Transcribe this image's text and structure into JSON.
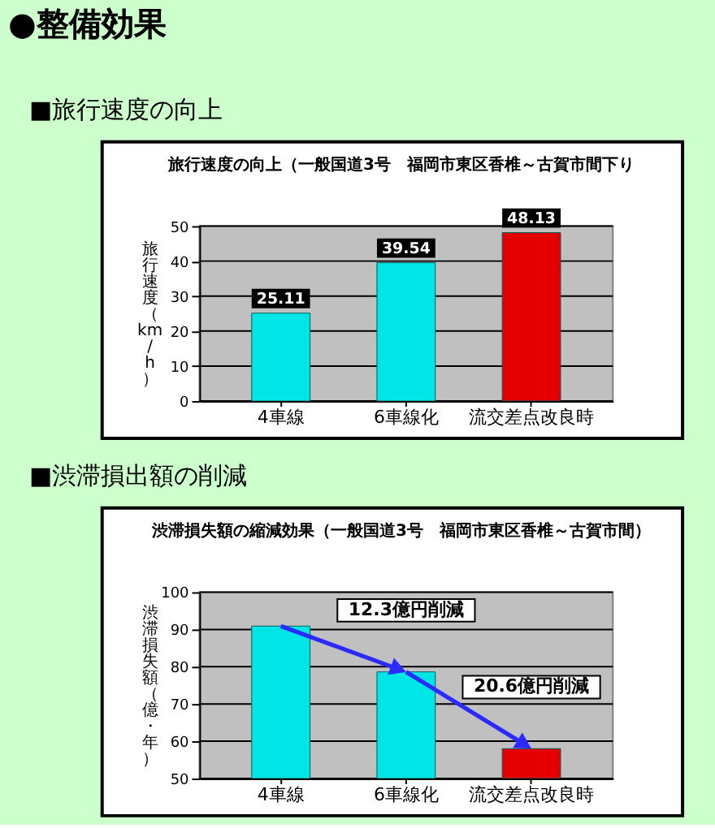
{
  "chart_data": [
    {
      "type": "bar",
      "title": "■旅行速度の向上",
      "subtitle": "旅行速度の向上（一般国道3号　福岡市東区香椎～古賀市間下り",
      "ylabel": "旅行速度（km/h）",
      "categories": [
        "4車線",
        "6車線化",
        "流交差点改良時"
      ],
      "values": [
        25.11,
        39.54,
        48.13
      ],
      "colors": [
        "#00e5e5",
        "#00e5e5",
        "#e50000"
      ],
      "ylim": [
        0,
        50
      ],
      "yticks": [
        0,
        10,
        20,
        30,
        40,
        50
      ],
      "grid": "y",
      "data_labels": true,
      "annotations": [
        "●整備効果"
      ]
    },
    {
      "type": "bar",
      "title": "■渋滞損出額の削減",
      "subtitle": "渋滞損失額の縮減効果（一般国道3号　福岡市東区香椎～古賀市間）",
      "ylabel": "渋滞損失額（億・年）",
      "categories": [
        "4車線",
        "6車線化",
        "流交差点改良時"
      ],
      "values": [
        90.9,
        78.6,
        58.0
      ],
      "colors": [
        "#00e5e5",
        "#00e5e5",
        "#e50000"
      ],
      "ylim": [
        50,
        100
      ],
      "yticks": [
        50,
        60,
        70,
        80,
        90,
        100
      ],
      "grid": "y",
      "annotations": [
        {
          "text": "12.3億円削減",
          "x": "6車線化",
          "y": 78.6
        },
        {
          "text": "20.6億円削減",
          "x": "流交差点改良時",
          "y": 58.0
        }
      ]
    }
  ]
}
